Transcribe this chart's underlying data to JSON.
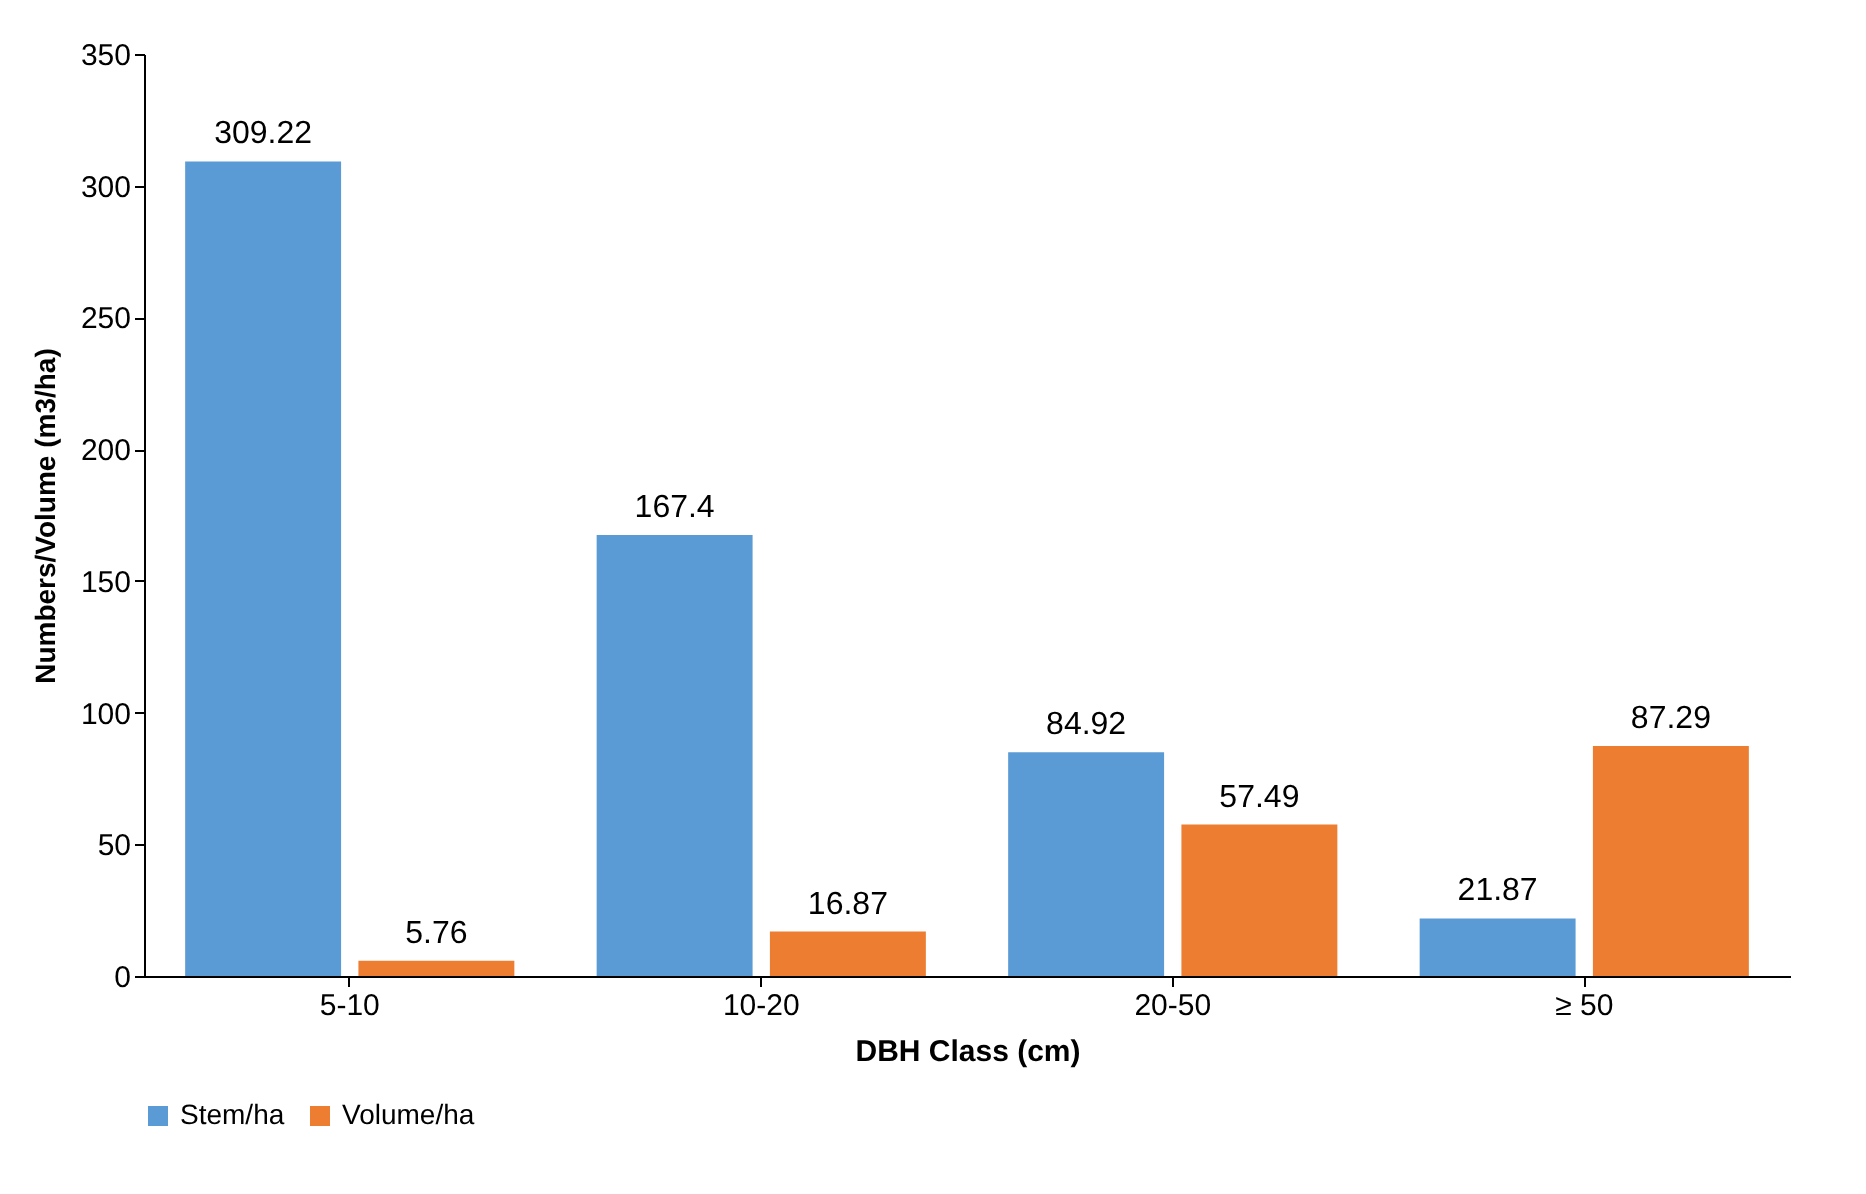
{
  "chart_data": {
    "type": "bar",
    "xlabel": "DBH Class (cm)",
    "ylabel": "Numbers/Volume (m3/ha)",
    "categories": [
      "5-10",
      "10-20",
      "20-50",
      "≥ 50"
    ],
    "series": [
      {
        "name": "Stem/ha",
        "color": "#5b9bd5",
        "values": [
          309.22,
          167.4,
          84.92,
          21.87
        ]
      },
      {
        "name": "Volume/ha",
        "color": "#ed7d31",
        "values": [
          5.76,
          16.87,
          57.49,
          87.29
        ]
      }
    ],
    "ylim": [
      0,
      350
    ],
    "yticks": [
      0,
      50,
      100,
      150,
      200,
      250,
      300,
      350
    ],
    "grid": false,
    "legend": "bottom",
    "data_labels": true
  }
}
